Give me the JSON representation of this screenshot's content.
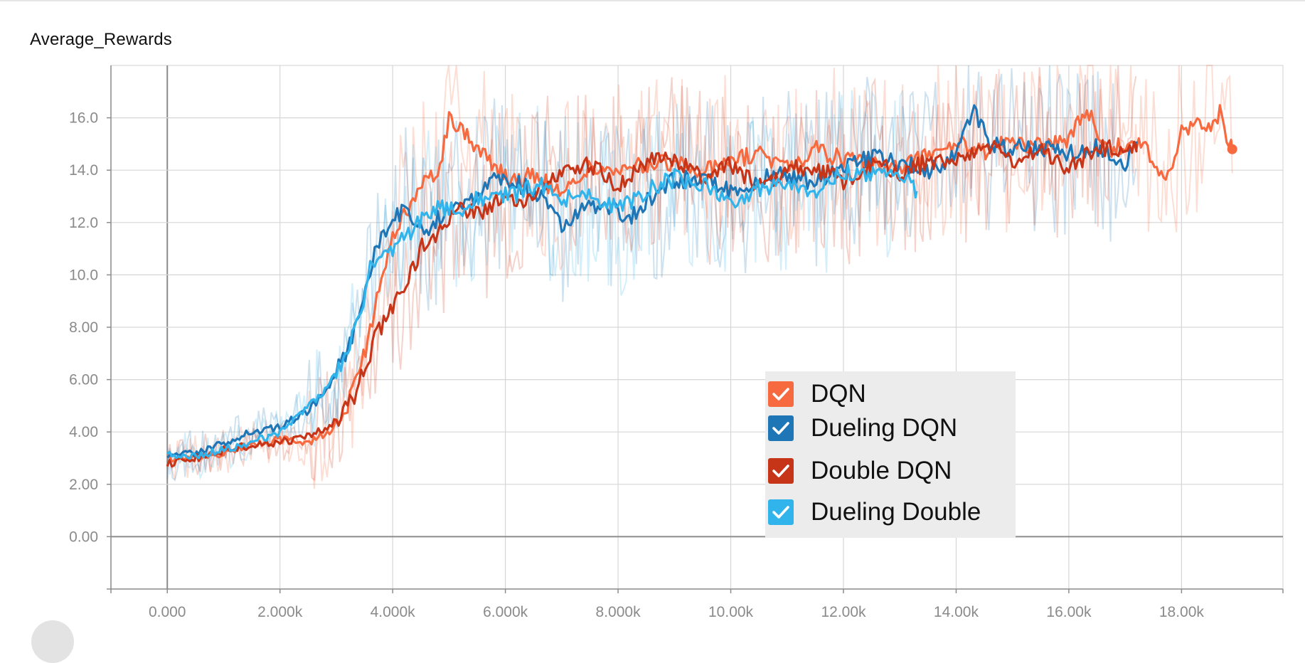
{
  "card": {
    "title": "Average_Rewards"
  },
  "chart_data": {
    "type": "line",
    "title": "Average_Rewards",
    "xlabel": "",
    "ylabel": "",
    "xlim": [
      -1000,
      19800
    ],
    "ylim": [
      -2,
      18
    ],
    "x_ticks": [
      {
        "value": 0,
        "label": "0.000"
      },
      {
        "value": 2000,
        "label": "2.000k"
      },
      {
        "value": 4000,
        "label": "4.000k"
      },
      {
        "value": 6000,
        "label": "6.000k"
      },
      {
        "value": 8000,
        "label": "8.000k"
      },
      {
        "value": 10000,
        "label": "10.00k"
      },
      {
        "value": 12000,
        "label": "12.00k"
      },
      {
        "value": 14000,
        "label": "14.00k"
      },
      {
        "value": 16000,
        "label": "16.00k"
      },
      {
        "value": 18000,
        "label": "18.00k"
      }
    ],
    "y_ticks": [
      {
        "value": 0,
        "label": "0.00"
      },
      {
        "value": 2,
        "label": "2.00"
      },
      {
        "value": 4,
        "label": "4.00"
      },
      {
        "value": 6,
        "label": "6.00"
      },
      {
        "value": 8,
        "label": "8.00"
      },
      {
        "value": 10,
        "label": "10.0"
      },
      {
        "value": 12,
        "label": "12.0"
      },
      {
        "value": 14,
        "label": "14.0"
      },
      {
        "value": 16,
        "label": "16.0"
      }
    ],
    "grid": true,
    "legend_position": "bottom-right",
    "series": [
      {
        "name": "DQN",
        "color": "#f7693f",
        "x": [
          0,
          500,
          1000,
          1500,
          2000,
          2500,
          3000,
          3300,
          3600,
          3800,
          4000,
          4200,
          4400,
          4600,
          4800,
          5000,
          5200,
          5500,
          5800,
          6100,
          6500,
          7000,
          7500,
          8000,
          8500,
          9000,
          9500,
          10000,
          10500,
          11000,
          11500,
          12000,
          12500,
          13000,
          13500,
          14000,
          14500,
          15000,
          15500,
          16000,
          16300,
          16700,
          17000,
          17300,
          17500,
          17700,
          18000,
          18300,
          18500,
          18700,
          18800,
          18900
        ],
        "y": [
          3.0,
          3.0,
          3.2,
          3.5,
          3.7,
          3.6,
          4.2,
          5.5,
          7.8,
          9.8,
          11.4,
          12.2,
          12.9,
          14.1,
          13.6,
          16.1,
          15.6,
          14.9,
          14.2,
          13.6,
          13.8,
          13.1,
          14.1,
          13.9,
          14.2,
          14.3,
          13.9,
          14.4,
          14.6,
          14.1,
          14.8,
          14.4,
          14.2,
          14.1,
          14.6,
          15.0,
          14.7,
          15.1,
          14.9,
          15.2,
          16.3,
          14.8,
          15.0,
          15.2,
          14.2,
          13.4,
          15.4,
          15.8,
          15.5,
          16.4,
          15.4,
          14.8
        ]
      },
      {
        "name": "Dueling DQN",
        "color": "#1f76b6",
        "x": [
          0,
          500,
          1000,
          1500,
          2000,
          2500,
          2900,
          3200,
          3500,
          3700,
          3900,
          4100,
          4300,
          4600,
          5000,
          5400,
          5800,
          6200,
          6600,
          7000,
          7400,
          7800,
          8200,
          8600,
          9000,
          9500,
          10000,
          10500,
          11000,
          11500,
          12000,
          12500,
          13000,
          13500,
          14000,
          14300,
          14600,
          15000,
          15500,
          16000,
          16500,
          17000,
          17200
        ],
        "y": [
          3.0,
          3.2,
          3.6,
          4.0,
          4.2,
          4.8,
          5.8,
          7.2,
          9.2,
          10.9,
          11.9,
          12.4,
          12.3,
          11.8,
          12.5,
          12.9,
          13.6,
          13.5,
          13.1,
          11.9,
          12.6,
          12.7,
          12.2,
          13.0,
          13.6,
          13.8,
          13.2,
          13.6,
          13.9,
          13.5,
          14.0,
          14.5,
          14.3,
          13.9,
          14.7,
          16.4,
          15.0,
          14.8,
          14.9,
          14.6,
          14.9,
          14.3,
          15.1
        ]
      },
      {
        "name": "Double DQN",
        "color": "#c73519",
        "x": [
          0,
          500,
          1000,
          1500,
          2000,
          2500,
          3000,
          3300,
          3500,
          3700,
          3900,
          4100,
          4300,
          4500,
          4800,
          5200,
          5600,
          6000,
          6400,
          6800,
          7200,
          7600,
          8000,
          8400,
          8800,
          9200,
          9600,
          10000,
          10500,
          11000,
          11500,
          12000,
          12500,
          13000,
          13500,
          14000,
          14500,
          15000,
          15500,
          16000,
          16500,
          17000,
          17200
        ],
        "y": [
          2.8,
          3.0,
          3.3,
          3.5,
          3.6,
          3.8,
          4.4,
          5.3,
          6.4,
          7.7,
          8.4,
          9.1,
          10.0,
          11.0,
          11.6,
          12.5,
          12.4,
          13.0,
          12.9,
          13.6,
          14.2,
          14.1,
          13.4,
          14.0,
          14.7,
          14.1,
          13.7,
          14.2,
          13.4,
          14.0,
          14.1,
          13.6,
          14.2,
          13.9,
          14.3,
          14.4,
          15.0,
          14.4,
          14.8,
          14.0,
          14.9,
          14.8,
          15.0
        ]
      },
      {
        "name": "Dueling Double",
        "color": "#31b4eb",
        "x": [
          0,
          500,
          1000,
          1500,
          2000,
          2400,
          2800,
          3100,
          3400,
          3600,
          3800,
          4000,
          4200,
          4500,
          4800,
          5100,
          5400,
          5800,
          6200,
          6600,
          7000,
          7500,
          8000,
          8500,
          9000,
          9500,
          10000,
          10500,
          11000,
          11500,
          12000,
          12500,
          13000,
          13300
        ],
        "y": [
          3.1,
          3.1,
          3.3,
          3.6,
          4.0,
          4.8,
          5.6,
          6.5,
          8.4,
          10.2,
          10.9,
          10.9,
          11.4,
          12.1,
          12.7,
          12.4,
          12.8,
          13.0,
          13.1,
          13.4,
          12.9,
          13.1,
          12.5,
          13.2,
          13.7,
          13.5,
          12.6,
          13.3,
          13.6,
          13.2,
          13.9,
          13.8,
          14.0,
          13.2
        ]
      }
    ]
  }
}
